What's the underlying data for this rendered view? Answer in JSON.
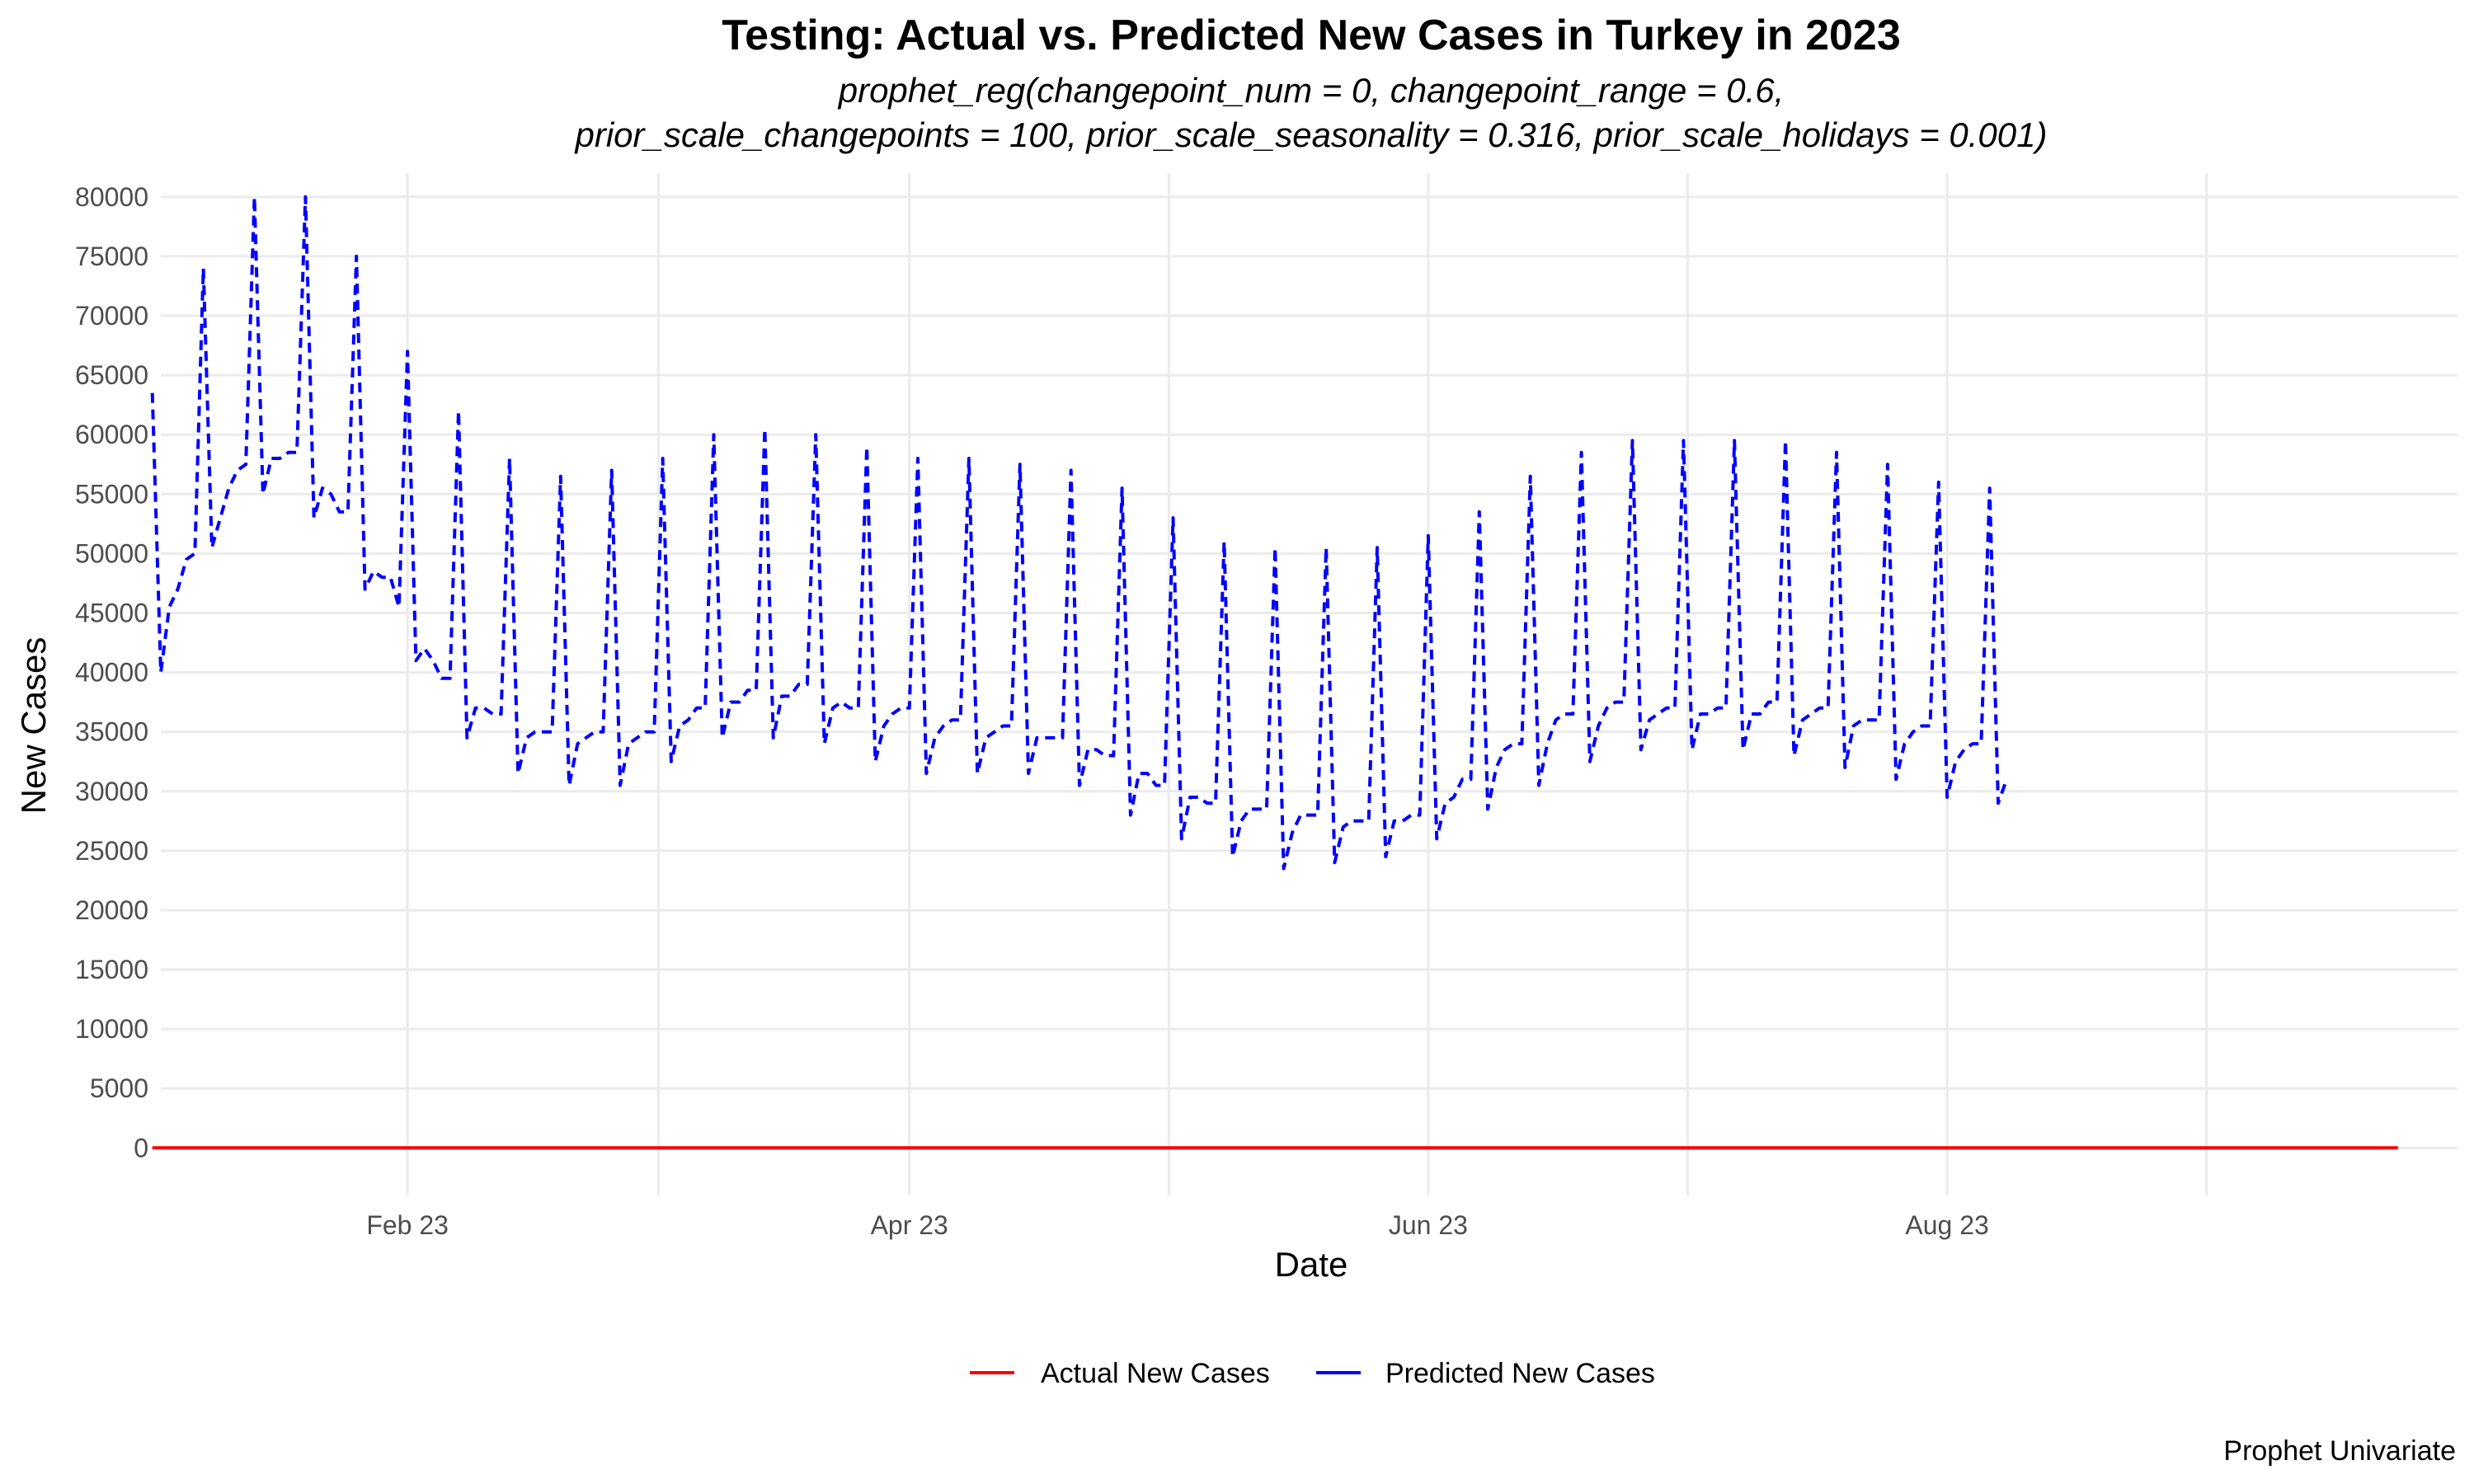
{
  "chart_data": {
    "type": "line",
    "title": "Testing: Actual vs. Predicted New Cases in Turkey in 2023",
    "subtitle_lines": [
      "prophet_reg(changepoint_num = 0, changepoint_range = 0.6,",
      "prior_scale_changepoints = 100, prior_scale_seasonality = 0.316, prior_scale_holidays = 0.001)"
    ],
    "xlabel": "Date",
    "ylabel": "New Cases",
    "caption": "Prophet Univariate",
    "x_ticks": [
      {
        "date": "2023-02-01",
        "label": "Feb 23"
      },
      {
        "date": "2023-04-01",
        "label": "Apr 23"
      },
      {
        "date": "2023-06-01",
        "label": "Jun 23"
      },
      {
        "date": "2023-08-01",
        "label": "Aug 23"
      }
    ],
    "y_ticks": [
      0,
      5000,
      10000,
      15000,
      20000,
      25000,
      30000,
      35000,
      40000,
      45000,
      50000,
      55000,
      60000,
      65000,
      70000,
      75000,
      80000
    ],
    "xlim": [
      "2023-01-03",
      "2023-09-30"
    ],
    "ylim": [
      -4000,
      82000
    ],
    "grid": true,
    "legend_position": "bottom",
    "series": [
      {
        "name": "Actual New Cases",
        "color": "#ff0000",
        "linestyle": "solid",
        "x": [
          "2023-01-02",
          "2023-09-23"
        ],
        "values": [
          0,
          0
        ]
      },
      {
        "name": "Predicted New Cases",
        "color": "#0000ff",
        "linestyle": "dashed",
        "start_date": "2023-01-02",
        "values": [
          63500,
          40000,
          45500,
          47000,
          49500,
          50000,
          74000,
          50500,
          53000,
          55500,
          57000,
          57500,
          80000,
          55000,
          58000,
          58000,
          58500,
          58500,
          80000,
          53000,
          55500,
          55000,
          53500,
          53500,
          75000,
          47000,
          48500,
          48000,
          48000,
          45500,
          67000,
          41000,
          42000,
          41000,
          39500,
          39500,
          62000,
          34500,
          37000,
          37000,
          36500,
          36500,
          58000,
          31500,
          34500,
          35000,
          35000,
          35000,
          56500,
          30500,
          34000,
          34500,
          35000,
          35000,
          57000,
          30500,
          34000,
          34500,
          35000,
          35000,
          58000,
          32500,
          35500,
          36000,
          37000,
          37000,
          60000,
          34500,
          37500,
          37500,
          38500,
          38500,
          60500,
          34500,
          38000,
          38000,
          39000,
          39000,
          60000,
          34000,
          37000,
          37500,
          37000,
          37000,
          59000,
          32500,
          35500,
          36500,
          37000,
          37000,
          58000,
          31500,
          34500,
          35500,
          36000,
          36000,
          58000,
          31500,
          34500,
          35000,
          35500,
          35500,
          57500,
          31500,
          34500,
          34500,
          34500,
          34500,
          57000,
          30500,
          33500,
          33500,
          33000,
          33000,
          55500,
          28000,
          31500,
          31500,
          30500,
          30500,
          53000,
          26000,
          29500,
          29500,
          29000,
          29000,
          51000,
          24500,
          27500,
          28500,
          28500,
          28500,
          50500,
          23500,
          26500,
          28000,
          28000,
          28000,
          50500,
          24000,
          27000,
          27500,
          27500,
          27500,
          50500,
          24500,
          27500,
          27500,
          28000,
          28000,
          51500,
          26000,
          29000,
          29500,
          31000,
          31000,
          53500,
          28500,
          32000,
          33500,
          34000,
          34000,
          56500,
          30500,
          34000,
          36000,
          36500,
          36500,
          58500,
          32500,
          35500,
          37000,
          37500,
          37500,
          59500,
          33500,
          36000,
          36500,
          37000,
          37000,
          59500,
          33500,
          36500,
          36500,
          37000,
          37000,
          59500,
          33500,
          36500,
          36500,
          37500,
          37500,
          59500,
          33000,
          36000,
          36500,
          37000,
          37000,
          58500,
          32000,
          35500,
          36000,
          36000,
          36000,
          57500,
          31000,
          34000,
          35000,
          35500,
          35500,
          56000,
          29500,
          32500,
          33500,
          34000,
          34000,
          55500,
          29000,
          31000
        ]
      }
    ]
  }
}
